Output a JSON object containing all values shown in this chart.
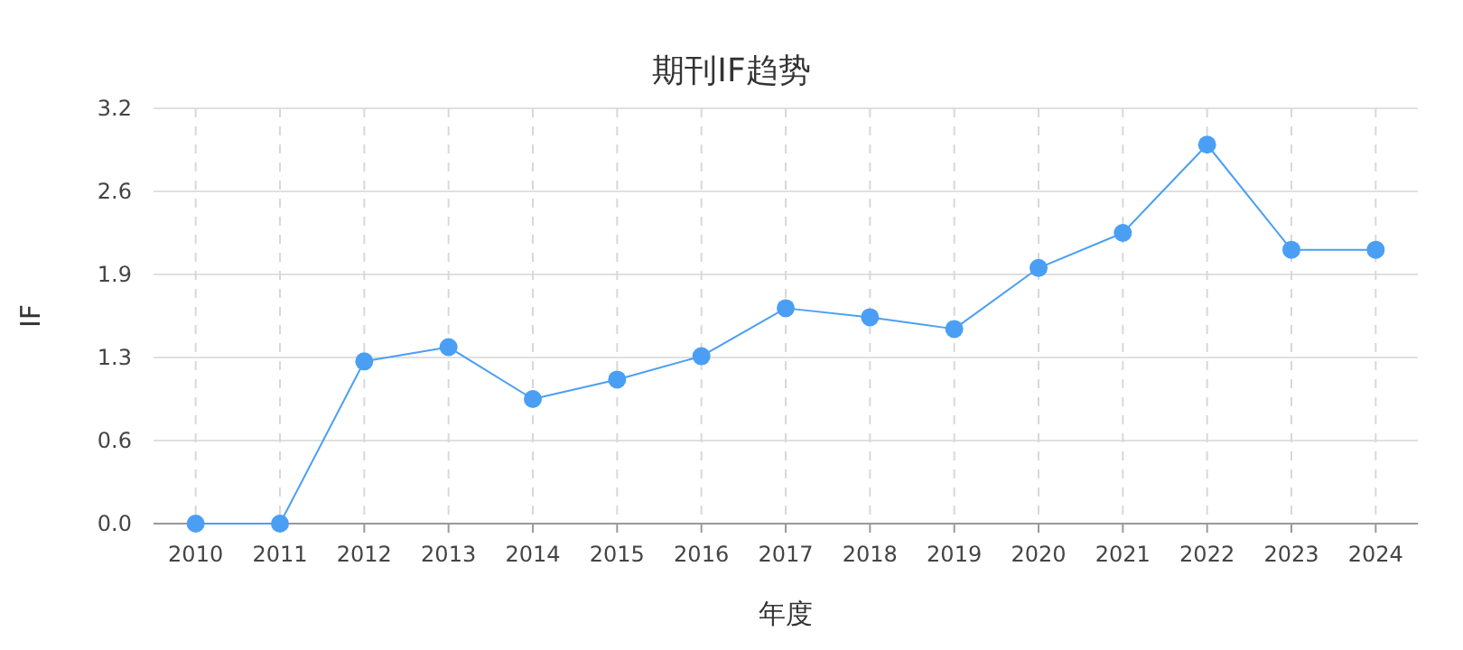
{
  "chart_data": {
    "type": "line",
    "title": "期刊IF趋势",
    "xlabel": "年度",
    "ylabel": "IF",
    "categories": [
      "2010",
      "2011",
      "2012",
      "2013",
      "2014",
      "2015",
      "2016",
      "2017",
      "2018",
      "2019",
      "2020",
      "2021",
      "2022",
      "2023",
      "2024"
    ],
    "values": [
      0,
      0,
      1.25,
      1.36,
      0.96,
      1.11,
      1.29,
      1.66,
      1.59,
      1.5,
      1.97,
      2.24,
      2.92,
      2.11,
      2.11
    ],
    "color": "#4a9ff5",
    "marker": "circle",
    "grid": true,
    "ylim": [
      0,
      3.2
    ],
    "yticks": [
      {
        "value": 0,
        "label": "0.0"
      },
      {
        "value": 0.64,
        "label": "0.6"
      },
      {
        "value": 1.28,
        "label": "1.3"
      },
      {
        "value": 1.92,
        "label": "1.9"
      },
      {
        "value": 2.56,
        "label": "2.6"
      },
      {
        "value": 3.2,
        "label": "3.2"
      }
    ]
  }
}
